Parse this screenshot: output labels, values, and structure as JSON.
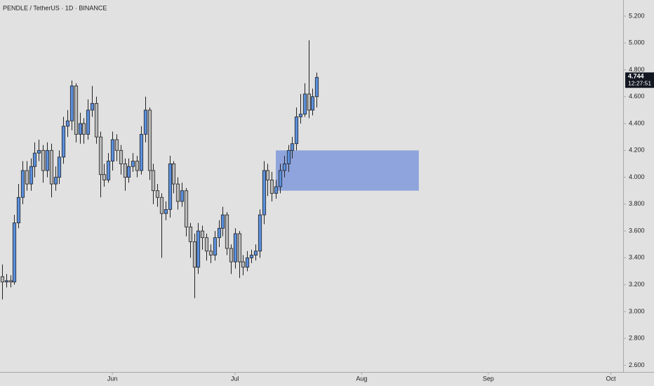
{
  "chart_data": {
    "type": "candlestick",
    "title": "PENDLE / TetherUS · 1D · BINANCE",
    "open": [
      3.26,
      3.22,
      3.23,
      3.22,
      3.66,
      3.85,
      4.05,
      3.95,
      4.08,
      4.18,
      4.2,
      4.05,
      4.2,
      3.95,
      4.0,
      4.15,
      4.38,
      4.42,
      4.68,
      4.32,
      4.4,
      4.32,
      4.5,
      4.55,
      4.3,
      4.02,
      3.98,
      4.12,
      4.28,
      4.2,
      4.1,
      4.0,
      4.08,
      4.12,
      4.05,
      4.32,
      4.5,
      4.05,
      3.9,
      3.85,
      3.73,
      3.76,
      4.1,
      3.95,
      3.82,
      3.9,
      3.63,
      3.52,
      3.33,
      3.6,
      3.55,
      3.45,
      3.42,
      3.55,
      3.62,
      3.72,
      3.47,
      3.37,
      3.58,
      3.37,
      3.33,
      3.4,
      3.42,
      3.45,
      3.72,
      4.05,
      3.98,
      3.88,
      3.93,
      4.05,
      4.1,
      4.2,
      4.25,
      4.45,
      4.47,
      4.62,
      4.5,
      4.6
    ],
    "high": [
      3.35,
      3.28,
      3.27,
      3.72,
      3.95,
      4.12,
      4.12,
      4.14,
      4.26,
      4.28,
      4.24,
      4.26,
      4.25,
      4.08,
      4.2,
      4.45,
      4.5,
      4.72,
      4.7,
      4.48,
      4.44,
      4.58,
      4.68,
      4.6,
      4.34,
      4.1,
      4.18,
      4.34,
      4.32,
      4.24,
      4.14,
      4.14,
      4.18,
      4.16,
      4.38,
      4.6,
      4.52,
      4.1,
      3.95,
      3.88,
      3.82,
      4.16,
      4.12,
      4.0,
      3.96,
      3.92,
      3.66,
      3.58,
      3.66,
      3.64,
      3.58,
      3.5,
      3.6,
      3.68,
      3.78,
      3.74,
      3.5,
      3.62,
      3.6,
      3.42,
      3.45,
      3.46,
      3.5,
      3.76,
      4.12,
      4.1,
      4.04,
      3.98,
      4.1,
      4.16,
      4.24,
      4.3,
      4.52,
      4.62,
      4.7,
      5.02,
      4.66,
      4.78
    ],
    "low": [
      3.09,
      3.18,
      3.18,
      3.2,
      3.62,
      3.8,
      3.9,
      3.9,
      4.0,
      4.12,
      3.96,
      4.0,
      3.85,
      3.9,
      3.95,
      4.1,
      4.3,
      4.35,
      4.26,
      4.25,
      4.25,
      4.28,
      4.45,
      4.25,
      3.85,
      3.93,
      3.96,
      4.05,
      4.12,
      4.02,
      3.9,
      3.96,
      4.04,
      4.0,
      4.02,
      4.26,
      3.98,
      3.8,
      3.78,
      3.4,
      3.68,
      3.7,
      3.88,
      3.76,
      3.78,
      3.56,
      3.4,
      3.1,
      3.28,
      3.46,
      3.38,
      3.36,
      3.38,
      3.48,
      3.56,
      3.42,
      3.28,
      3.32,
      3.25,
      3.27,
      3.3,
      3.36,
      3.38,
      3.4,
      3.65,
      3.86,
      3.82,
      3.84,
      3.88,
      4.0,
      4.04,
      4.14,
      4.2,
      4.4,
      4.45,
      4.44,
      4.46,
      4.52
    ],
    "close": [
      3.22,
      3.23,
      3.22,
      3.66,
      3.85,
      4.05,
      3.95,
      4.08,
      4.18,
      4.2,
      4.05,
      4.2,
      3.95,
      4.0,
      4.15,
      4.38,
      4.42,
      4.68,
      4.32,
      4.4,
      4.32,
      4.5,
      4.55,
      4.3,
      4.02,
      3.98,
      4.12,
      4.28,
      4.2,
      4.1,
      4.0,
      4.08,
      4.12,
      4.05,
      4.32,
      4.5,
      4.05,
      3.9,
      3.85,
      3.73,
      3.76,
      4.1,
      3.95,
      3.82,
      3.9,
      3.63,
      3.52,
      3.33,
      3.6,
      3.55,
      3.45,
      3.42,
      3.55,
      3.62,
      3.72,
      3.47,
      3.37,
      3.58,
      3.37,
      3.33,
      3.4,
      3.42,
      3.45,
      3.72,
      4.05,
      3.98,
      3.88,
      3.93,
      4.05,
      4.1,
      4.2,
      4.25,
      4.45,
      4.47,
      4.62,
      4.5,
      4.6,
      4.744
    ],
    "up_color": "#5b8fdb",
    "down_color": "#b9b9b9",
    "xlim": [
      -0.5,
      152
    ],
    "xticks": [
      {
        "value": 27,
        "label": "Jun"
      },
      {
        "value": 57,
        "label": "Jul"
      },
      {
        "value": 88,
        "label": "Aug"
      },
      {
        "value": 119,
        "label": "Sep"
      },
      {
        "value": 149,
        "label": "Oct"
      }
    ],
    "ylim": [
      2.55,
      5.32
    ],
    "yticks": [
      {
        "value": 2.6,
        "label": "2.600"
      },
      {
        "value": 2.8,
        "label": "2.800"
      },
      {
        "value": 3.0,
        "label": "3.000"
      },
      {
        "value": 3.2,
        "label": "3.200"
      },
      {
        "value": 3.4,
        "label": "3.400"
      },
      {
        "value": 3.6,
        "label": "3.600"
      },
      {
        "value": 3.8,
        "label": "3.800"
      },
      {
        "value": 4.0,
        "label": "4.000"
      },
      {
        "value": 4.2,
        "label": "4.200"
      },
      {
        "value": 4.4,
        "label": "4.400"
      },
      {
        "value": 4.6,
        "label": "4.600"
      },
      {
        "value": 4.8,
        "label": "4.800"
      },
      {
        "value": 5.0,
        "label": "5.000"
      },
      {
        "value": 5.2,
        "label": "5.200"
      }
    ],
    "zone": {
      "x": [
        67,
        102
      ],
      "y": [
        3.9,
        4.2
      ],
      "color": "#8fa4dc"
    },
    "countdown": "12:27:51"
  }
}
